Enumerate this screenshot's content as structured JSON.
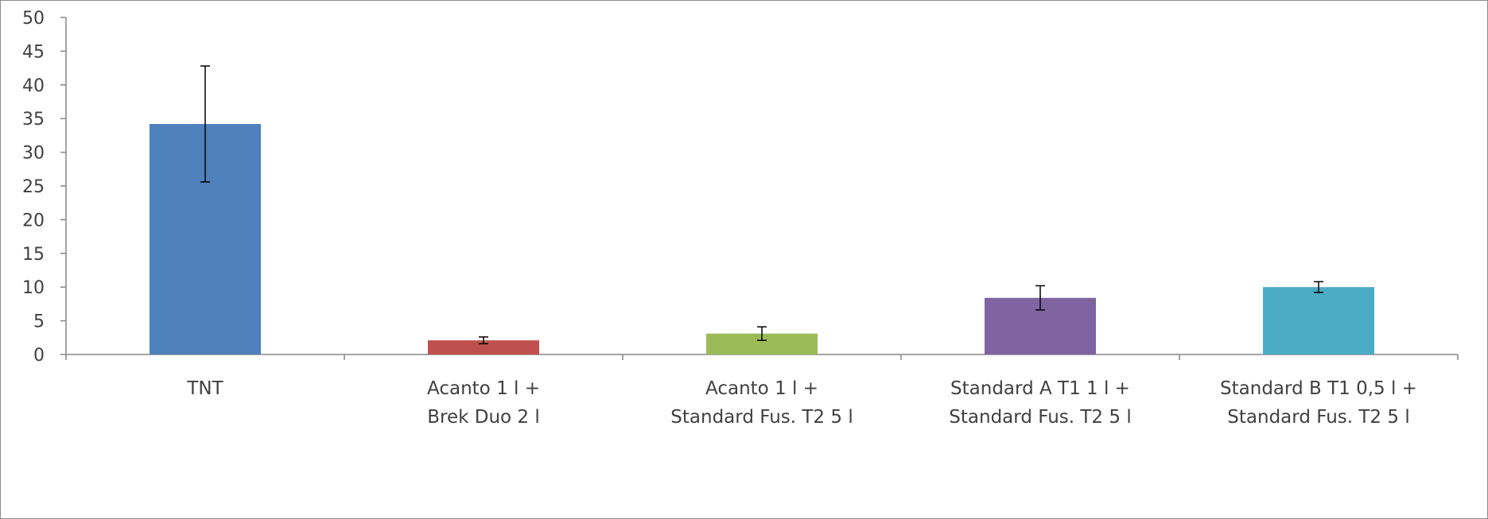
{
  "chart_data": {
    "type": "bar",
    "title": "",
    "xlabel": "",
    "ylabel": "",
    "ylim": [
      0,
      50
    ],
    "yticks": [
      0,
      5,
      10,
      15,
      20,
      25,
      30,
      35,
      40,
      45,
      50
    ],
    "grid": false,
    "legend": "none",
    "categories": [
      [
        "TNT"
      ],
      [
        "Acanto 1 l +",
        "Brek Duo 2 l"
      ],
      [
        "Acanto 1 l +",
        "Standard Fus. T2 5 l"
      ],
      [
        "Standard A T1 1 l +",
        "Standard Fus. T2 5 l"
      ],
      [
        "Standard B T1 0,5 l +",
        "Standard Fus. T2 5 l"
      ]
    ],
    "values": [
      34.2,
      2.1,
      3.1,
      8.4,
      10.0
    ],
    "errors": [
      8.6,
      0.5,
      1.0,
      1.8,
      0.8
    ],
    "colors": [
      "#4f81bd",
      "#c0504d",
      "#9bbb59",
      "#8064a2",
      "#4bacc6"
    ]
  }
}
